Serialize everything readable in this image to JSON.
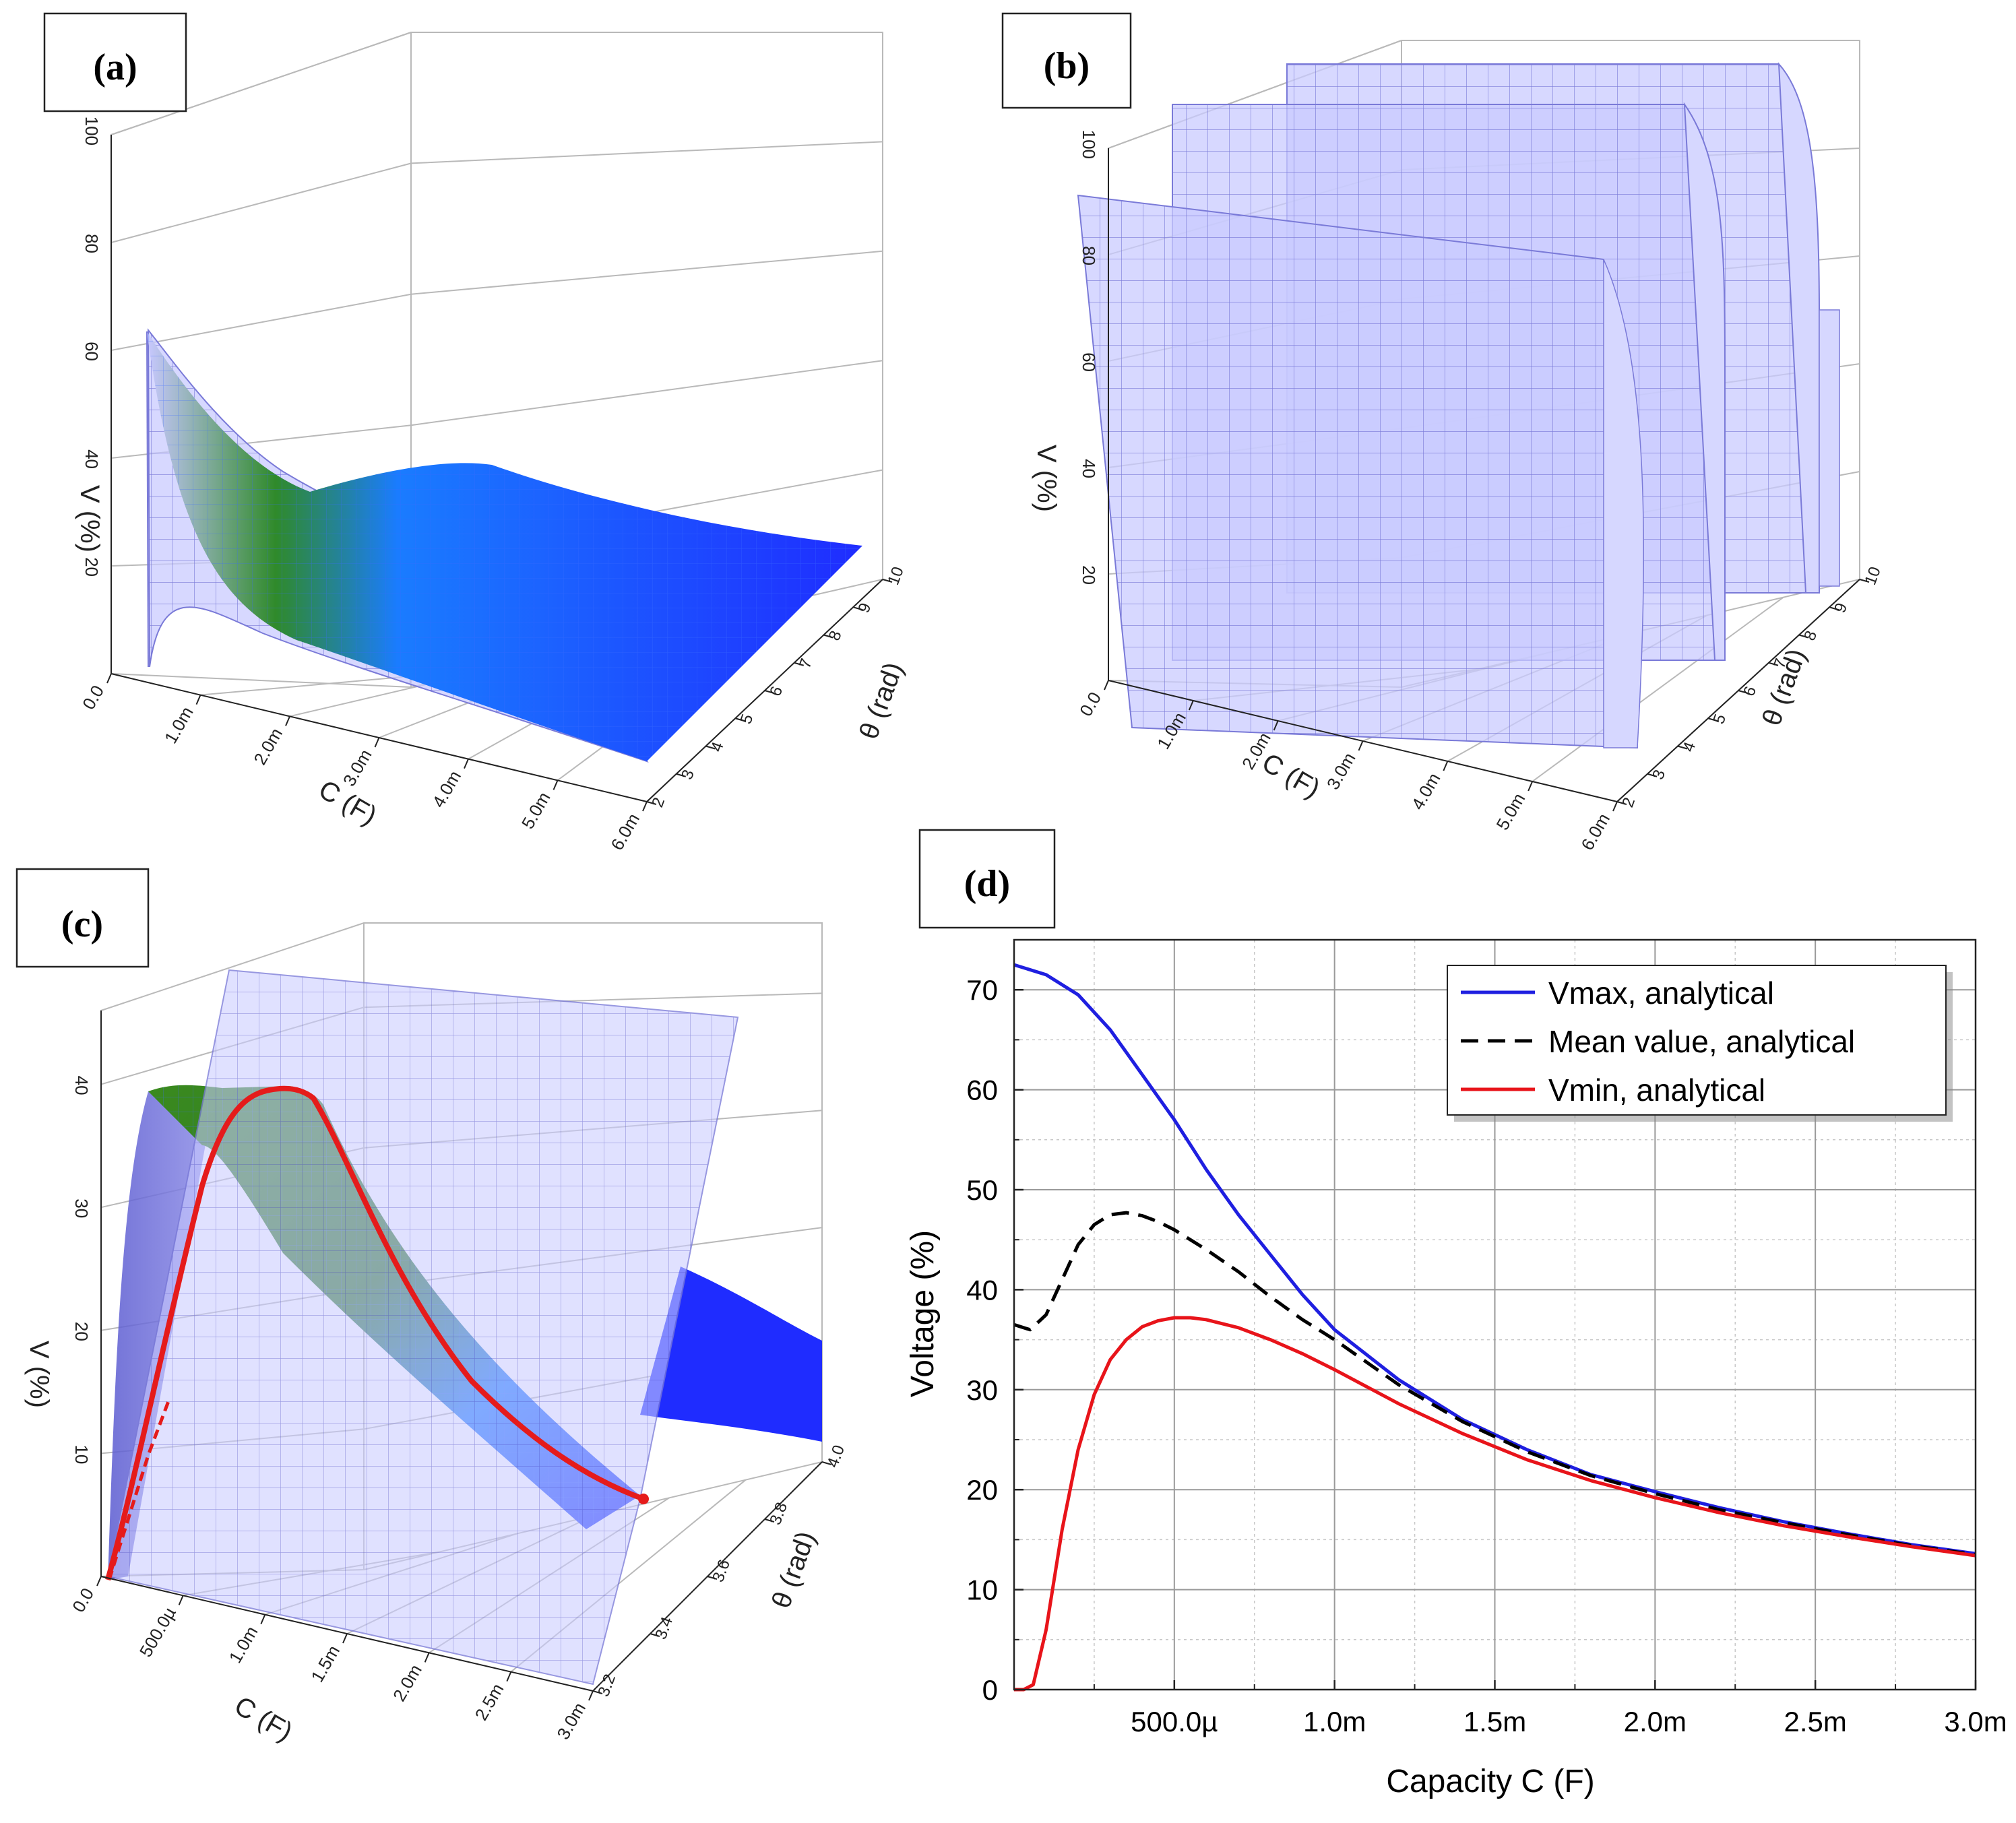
{
  "colors": {
    "surface_blue": "#1f2cff",
    "surface_light": "#c4c6ff",
    "grid": "#b9b9b9",
    "vmax": "#1f1fe0",
    "mean": "#000000",
    "vmin": "#e8141a",
    "curve_red": "#e51b1b",
    "green": "#2f8a2a"
  },
  "chart_data": [
    {
      "panel": "a",
      "panel_label": "(a)",
      "type": "surface",
      "x_axis_label": "C (F)",
      "y_axis_label": "θ (rad)",
      "z_axis_label": "V (%)",
      "x_ticks": [
        "0.0",
        "1.0m",
        "2.0m",
        "3.0m",
        "4.0m",
        "5.0m",
        "6.0m"
      ],
      "y_ticks": [
        "2",
        "3",
        "4",
        "5",
        "6",
        "7",
        "8",
        "9",
        "10"
      ],
      "z_ticks": [
        "20",
        "40",
        "60",
        "80",
        "100"
      ],
      "xlim": [
        0,
        0.006
      ],
      "ylim": [
        2,
        10
      ],
      "zlim": [
        0,
        100
      ],
      "description_series": "V at θ = 2 rad edge vs C",
      "x": [
        0,
        0.0002,
        0.0005,
        0.001,
        0.0015,
        0.002,
        0.003,
        0.004,
        0.005,
        0.006
      ],
      "z_front_edge": [
        0,
        64,
        55,
        40,
        31,
        25,
        17,
        13,
        11,
        9
      ]
    },
    {
      "panel": "b",
      "panel_label": "(b)",
      "type": "surface",
      "x_axis_label": "C (F)",
      "y_axis_label": "θ (rad)",
      "z_axis_label": "V (%)",
      "x_ticks": [
        "0.0",
        "1.0m",
        "2.0m",
        "3.0m",
        "4.0m",
        "5.0m",
        "6.0m"
      ],
      "y_ticks": [
        "2",
        "3",
        "4",
        "5",
        "6",
        "7",
        "8",
        "9",
        "10"
      ],
      "z_ticks": [
        "20",
        "40",
        "60",
        "80",
        "100"
      ],
      "xlim": [
        0,
        0.006
      ],
      "ylim": [
        2,
        10
      ],
      "zlim": [
        0,
        100
      ],
      "description_series": "|sin θ| sheets, constant along C",
      "theta": [
        2,
        3.14,
        4.71,
        6.28,
        7.85,
        9.42,
        10
      ],
      "z_profile": [
        91,
        0,
        100,
        0,
        100,
        0,
        54
      ]
    },
    {
      "panel": "c",
      "panel_label": "(c)",
      "type": "surface",
      "x_axis_label": "C (F)",
      "y_axis_label": "θ (rad)",
      "z_axis_label": "V (%)",
      "x_ticks": [
        "0.0",
        "500.0µ",
        "1.0m",
        "1.5m",
        "2.0m",
        "2.5m",
        "3.0m"
      ],
      "y_ticks": [
        "3.2",
        "3.4",
        "3.6",
        "3.8",
        "4.0"
      ],
      "z_ticks": [
        "10",
        "20",
        "30",
        "40"
      ],
      "xlim": [
        0,
        0.003
      ],
      "ylim": [
        3.1,
        4.0
      ],
      "zlim": [
        0,
        45
      ],
      "description_series": "Vmin ridge curve (red)",
      "x": [
        0,
        0.0005,
        0.001,
        0.0015,
        0.002,
        0.0025,
        0.003
      ],
      "z_ridge": [
        0,
        37,
        31,
        24,
        19,
        16,
        13
      ]
    },
    {
      "panel": "d",
      "panel_label": "(d)",
      "type": "line",
      "title": "",
      "xlabel": "Capacity C (F)",
      "ylabel": "Voltage (%)",
      "xlim": [
        0,
        0.003
      ],
      "ylim": [
        0,
        75
      ],
      "x_tick_labels": [
        "500.0µ",
        "1.0m",
        "1.5m",
        "2.0m",
        "2.5m",
        "3.0m"
      ],
      "x_tick_values": [
        0.0005,
        0.001,
        0.0015,
        0.002,
        0.0025,
        0.003
      ],
      "y_tick_labels": [
        "0",
        "10",
        "20",
        "30",
        "40",
        "50",
        "60",
        "70"
      ],
      "y_tick_values": [
        0,
        10,
        20,
        30,
        40,
        50,
        60,
        70
      ],
      "legend_position": "top-right",
      "series": [
        {
          "name": "Vmax, analytical",
          "color": "#1f1fe0",
          "dash": "solid",
          "x": [
            0,
            0.0001,
            0.0002,
            0.0003,
            0.0004,
            0.0005,
            0.0006,
            0.0007,
            0.0008,
            0.0009,
            0.001,
            0.0012,
            0.0014,
            0.0016,
            0.0018,
            0.002,
            0.0022,
            0.0024,
            0.0026,
            0.0028,
            0.003
          ],
          "values": [
            72.5,
            71.5,
            69.5,
            66,
            61.5,
            57,
            52,
            47.5,
            43.5,
            39.5,
            36,
            31,
            27,
            24,
            21.5,
            19.8,
            18.2,
            16.8,
            15.6,
            14.5,
            13.6
          ]
        },
        {
          "name": "Mean value, analytical",
          "color": "#000000",
          "dash": "dashed",
          "x": [
            0,
            5e-05,
            0.0001,
            0.00015,
            0.0002,
            0.00025,
            0.0003,
            0.00035,
            0.0004,
            0.00045,
            0.0005,
            0.0006,
            0.0007,
            0.0008,
            0.0009,
            0.001,
            0.0012,
            0.0014,
            0.0016,
            0.0018,
            0.002,
            0.0022,
            0.0024,
            0.0026,
            0.0028,
            0.003
          ],
          "values": [
            36.5,
            36,
            37.5,
            41,
            44.5,
            46.5,
            47.5,
            47.7,
            47.4,
            46.8,
            46,
            44,
            41.8,
            39.3,
            37,
            35,
            30.5,
            26.8,
            23.8,
            21.4,
            19.6,
            18,
            16.7,
            15.5,
            14.4,
            13.5
          ]
        },
        {
          "name": "Vmin, analytical",
          "color": "#e8141a",
          "dash": "solid",
          "x": [
            0,
            3e-05,
            6e-05,
            0.0001,
            0.00015,
            0.0002,
            0.00025,
            0.0003,
            0.00035,
            0.0004,
            0.00045,
            0.0005,
            0.00055,
            0.0006,
            0.0007,
            0.0008,
            0.0009,
            0.001,
            0.0012,
            0.0014,
            0.0016,
            0.0018,
            0.002,
            0.0022,
            0.0024,
            0.0026,
            0.0028,
            0.003
          ],
          "values": [
            0,
            0,
            0.5,
            6,
            16,
            24,
            29.5,
            33,
            35,
            36.3,
            36.9,
            37.2,
            37.2,
            37,
            36.2,
            35,
            33.6,
            32,
            28.6,
            25.6,
            23,
            20.9,
            19.2,
            17.7,
            16.4,
            15.3,
            14.3,
            13.4
          ]
        }
      ]
    }
  ]
}
